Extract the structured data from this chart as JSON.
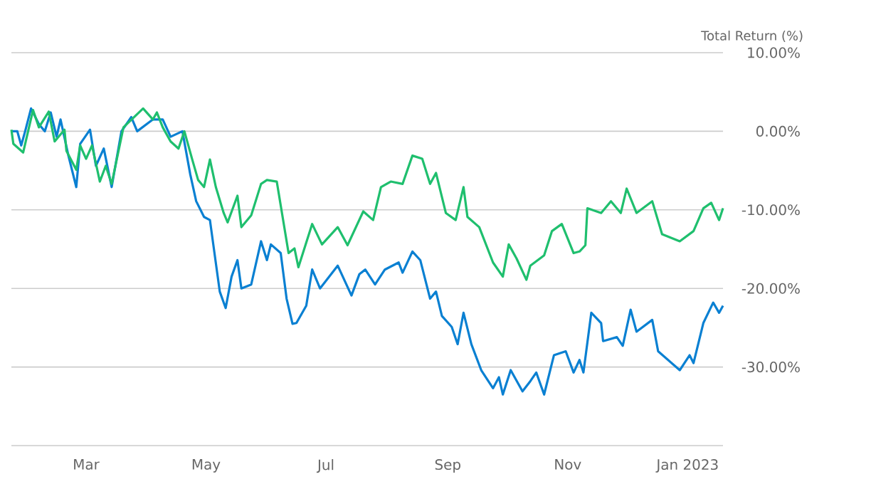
{
  "chart_data": {
    "type": "line",
    "ylabel": "Total Return (%)",
    "xlim": [
      "2022-01-22",
      "2023-01-19"
    ],
    "xticks": [
      {
        "value": "2022-03-01",
        "label": "Mar"
      },
      {
        "value": "2022-05-01",
        "label": "May"
      },
      {
        "value": "2022-07-01",
        "label": "Jul"
      },
      {
        "value": "2022-09-01",
        "label": "Sep"
      },
      {
        "value": "2022-11-01",
        "label": "Nov"
      },
      {
        "value": "2023-01-01",
        "label": "Jan 2023"
      }
    ],
    "ylim": [
      -40,
      10
    ],
    "yticks": [
      {
        "value": -40,
        "label": null
      },
      {
        "value": -30,
        "label": "-30.00%"
      },
      {
        "value": -20,
        "label": "-20.00%"
      },
      {
        "value": -10,
        "label": "-10.00%"
      },
      {
        "value": 0,
        "label": "0.00%"
      },
      {
        "value": 10,
        "label": "10.00%"
      }
    ],
    "grid": "y",
    "legend": false,
    "marker": "none",
    "line_style": "solid",
    "series": [
      {
        "color": "#0a80d2",
        "x": [
          "2022-01-22",
          "2022-01-25",
          "2022-01-27",
          "2022-01-29",
          "2022-02-01",
          "2022-02-05",
          "2022-02-08",
          "2022-02-11",
          "2022-02-14",
          "2022-02-16",
          "2022-02-20",
          "2022-02-24",
          "2022-02-26",
          "2022-03-03",
          "2022-03-06",
          "2022-03-10",
          "2022-03-14",
          "2022-03-19",
          "2022-03-24",
          "2022-03-27",
          "2022-04-04",
          "2022-04-09",
          "2022-04-13",
          "2022-04-19",
          "2022-04-23",
          "2022-04-26",
          "2022-04-30",
          "2022-05-03",
          "2022-05-08",
          "2022-05-11",
          "2022-05-14",
          "2022-05-17",
          "2022-05-19",
          "2022-05-24",
          "2022-05-29",
          "2022-06-01",
          "2022-06-03",
          "2022-06-08",
          "2022-06-11",
          "2022-06-14",
          "2022-06-16",
          "2022-06-21",
          "2022-06-24",
          "2022-06-28",
          "2022-07-07",
          "2022-07-14",
          "2022-07-18",
          "2022-07-21",
          "2022-07-26",
          "2022-07-31",
          "2022-08-07",
          "2022-08-09",
          "2022-08-14",
          "2022-08-18",
          "2022-08-23",
          "2022-08-26",
          "2022-08-29",
          "2022-09-03",
          "2022-09-06",
          "2022-09-09",
          "2022-09-13",
          "2022-09-18",
          "2022-09-24",
          "2022-09-27",
          "2022-09-29",
          "2022-10-03",
          "2022-10-09",
          "2022-10-13",
          "2022-10-16",
          "2022-10-20",
          "2022-10-25",
          "2022-10-31",
          "2022-11-04",
          "2022-11-07",
          "2022-11-09",
          "2022-11-13",
          "2022-11-18",
          "2022-11-19",
          "2022-11-26",
          "2022-11-29",
          "2022-12-03",
          "2022-12-06",
          "2022-12-14",
          "2022-12-17",
          "2022-12-28",
          "2023-01-02",
          "2023-01-04",
          "2023-01-09",
          "2023-01-14",
          "2023-01-17",
          "2023-01-19"
        ],
        "values": [
          0,
          0,
          -1.8,
          0,
          2.9,
          0.9,
          0,
          2.4,
          -0.7,
          1.5,
          -3.1,
          -7.1,
          -1.6,
          0.2,
          -4.4,
          -2.2,
          -7.1,
          0,
          1.8,
          0,
          1.5,
          1.5,
          -0.7,
          0,
          -5.5,
          -8.9,
          -10.9,
          -11.3,
          -20.4,
          -22.5,
          -18.5,
          -16.4,
          -20,
          -19.5,
          -14,
          -16.4,
          -14.4,
          -15.5,
          -21.3,
          -24.5,
          -24.4,
          -22.2,
          -17.6,
          -20,
          -17.1,
          -20.9,
          -18.2,
          -17.6,
          -19.5,
          -17.6,
          -16.7,
          -18,
          -15.3,
          -16.4,
          -21.3,
          -20.4,
          -23.5,
          -24.9,
          -27.1,
          -23.1,
          -27.1,
          -30.4,
          -32.7,
          -31.3,
          -33.5,
          -30.4,
          -33.1,
          -31.8,
          -30.7,
          -33.5,
          -28.5,
          -28,
          -30.7,
          -29.1,
          -30.7,
          -23.1,
          -24.4,
          -26.7,
          -26.2,
          -27.3,
          -22.7,
          -25.5,
          -24,
          -28,
          -30.4,
          -28.5,
          -29.5,
          -24.4,
          -21.8,
          -23.1,
          -22.2
        ]
      },
      {
        "color": "#1fbf6e",
        "x": [
          "2022-01-22",
          "2022-01-23",
          "2022-01-28",
          "2022-02-02",
          "2022-02-05",
          "2022-02-10",
          "2022-02-13",
          "2022-02-18",
          "2022-02-19",
          "2022-02-24",
          "2022-02-26",
          "2022-03-01",
          "2022-03-04",
          "2022-03-08",
          "2022-03-11",
          "2022-03-14",
          "2022-03-20",
          "2022-03-30",
          "2022-04-04",
          "2022-04-06",
          "2022-04-09",
          "2022-04-13",
          "2022-04-17",
          "2022-04-20",
          "2022-04-24",
          "2022-04-27",
          "2022-04-30",
          "2022-05-03",
          "2022-05-06",
          "2022-05-10",
          "2022-05-12",
          "2022-05-17",
          "2022-05-19",
          "2022-05-24",
          "2022-05-29",
          "2022-06-01",
          "2022-06-06",
          "2022-06-12",
          "2022-06-15",
          "2022-06-17",
          "2022-06-24",
          "2022-06-29",
          "2022-07-07",
          "2022-07-12",
          "2022-07-20",
          "2022-07-25",
          "2022-07-29",
          "2022-08-03",
          "2022-08-09",
          "2022-08-14",
          "2022-08-19",
          "2022-08-23",
          "2022-08-26",
          "2022-08-31",
          "2022-09-05",
          "2022-09-09",
          "2022-09-11",
          "2022-09-17",
          "2022-09-24",
          "2022-09-29",
          "2022-10-02",
          "2022-10-06",
          "2022-10-11",
          "2022-10-13",
          "2022-10-20",
          "2022-10-24",
          "2022-10-29",
          "2022-11-04",
          "2022-11-07",
          "2022-11-10",
          "2022-11-11",
          "2022-11-18",
          "2022-11-23",
          "2022-11-28",
          "2022-12-01",
          "2022-12-06",
          "2022-12-14",
          "2022-12-19",
          "2022-12-28",
          "2023-01-04",
          "2023-01-09",
          "2023-01-13",
          "2023-01-17",
          "2023-01-19"
        ],
        "values": [
          0.2,
          -1.6,
          -2.7,
          2.7,
          0.5,
          2.5,
          -1.3,
          0.2,
          -2.5,
          -4.9,
          -1.8,
          -3.5,
          -1.8,
          -6.4,
          -4.4,
          -6.7,
          0.5,
          2.9,
          1.5,
          2.4,
          0.5,
          -1.3,
          -2.2,
          0,
          -3.6,
          -6.2,
          -7.1,
          -3.6,
          -7.1,
          -10.4,
          -11.6,
          -8.2,
          -12.2,
          -10.7,
          -6.7,
          -6.2,
          -6.4,
          -15.5,
          -14.9,
          -17.3,
          -11.8,
          -14.4,
          -12.2,
          -14.5,
          -10.2,
          -11.3,
          -7.1,
          -6.4,
          -6.7,
          -3.1,
          -3.5,
          -6.7,
          -5.3,
          -10.4,
          -11.3,
          -7.1,
          -10.9,
          -12.2,
          -16.7,
          -18.5,
          -14.4,
          -16.2,
          -18.9,
          -17.1,
          -15.8,
          -12.7,
          -11.8,
          -15.5,
          -15.3,
          -14.5,
          -9.8,
          -10.4,
          -8.9,
          -10.4,
          -7.3,
          -10.4,
          -8.9,
          -13.1,
          -14,
          -12.7,
          -9.8,
          -9.1,
          -11.3,
          -9.8
        ]
      }
    ]
  }
}
